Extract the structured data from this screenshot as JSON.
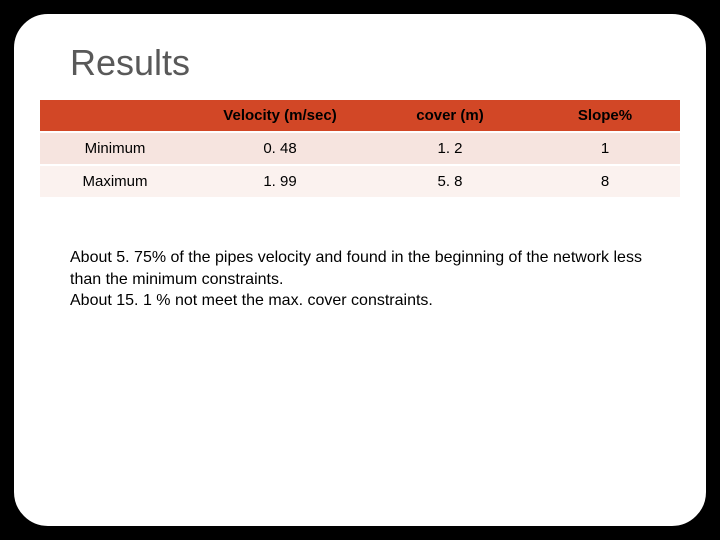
{
  "title": "Results",
  "table": {
    "columns": [
      "Velocity (m/sec)",
      "cover (m)",
      "Slope%"
    ],
    "rows": [
      {
        "label": "Minimum",
        "values": [
          "0. 48",
          "1. 2",
          "1"
        ]
      },
      {
        "label": "Maximum",
        "values": [
          "1. 99",
          "5. 8",
          "8"
        ]
      }
    ],
    "header_bg": "#d24726",
    "row_colors": [
      "#f6e4df",
      "#fbf2ef"
    ],
    "header_fontsize": 15,
    "cell_fontsize": 15
  },
  "paragraph": {
    "line1": "About 5. 75% of the pipes velocity and found  in the beginning of the network less than the minimum constraints.",
    "line2": "About 15. 1 % not meet the max. cover constraints."
  },
  "colors": {
    "slide_bg": "#ffffff",
    "outer_bg": "#000000",
    "title_color": "#595959",
    "text_color": "#000000"
  }
}
